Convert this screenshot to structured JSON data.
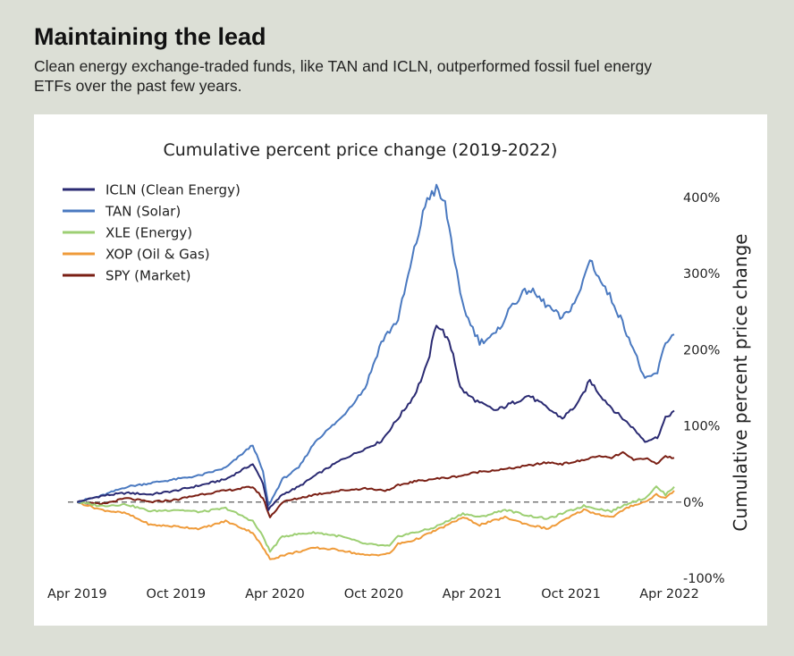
{
  "header": {
    "title": "Maintaining the lead",
    "subtitle": "Clean energy exchange-traded funds, like TAN and ICLN, outperformed fossil fuel energy ETFs over the past few years."
  },
  "chart_data": {
    "type": "line",
    "title": "Cumulative percent price change (2019-2022)",
    "ylabel": "Cumulative percent price change",
    "xlabel": "",
    "x_ticks": [
      "Apr 2019",
      "Oct 2019",
      "Apr 2020",
      "Oct 2020",
      "Apr 2021",
      "Oct 2021",
      "Apr 2022"
    ],
    "y_ticks": [
      "-100%",
      "0%",
      "100%",
      "200%",
      "300%",
      "400%"
    ],
    "y_tick_values": [
      -100,
      0,
      100,
      200,
      300,
      400
    ],
    "ylim": [
      -100,
      415
    ],
    "xlim": [
      "2019-03-15",
      "2022-04-20"
    ],
    "y_axis_side": "right",
    "grid": false,
    "legend_position": "top-left",
    "baseline": {
      "y": 0,
      "style": "dashed",
      "color": "#777777"
    },
    "series": [
      {
        "name": "ICLN (Clean Energy)",
        "color": "#2a2a72",
        "points": [
          [
            "2019-04-01",
            0
          ],
          [
            "2019-05-15",
            8
          ],
          [
            "2019-07-01",
            12
          ],
          [
            "2019-08-15",
            10
          ],
          [
            "2019-10-01",
            15
          ],
          [
            "2019-11-15",
            22
          ],
          [
            "2020-01-01",
            30
          ],
          [
            "2020-02-20",
            50
          ],
          [
            "2020-03-10",
            25
          ],
          [
            "2020-03-20",
            -10
          ],
          [
            "2020-04-15",
            10
          ],
          [
            "2020-05-15",
            20
          ],
          [
            "2020-06-15",
            35
          ],
          [
            "2020-08-01",
            55
          ],
          [
            "2020-09-15",
            70
          ],
          [
            "2020-10-15",
            80
          ],
          [
            "2020-11-15",
            110
          ],
          [
            "2020-12-15",
            140
          ],
          [
            "2021-01-08",
            180
          ],
          [
            "2021-01-25",
            235
          ],
          [
            "2021-02-10",
            220
          ],
          [
            "2021-02-25",
            195
          ],
          [
            "2021-03-10",
            150
          ],
          [
            "2021-03-25",
            140
          ],
          [
            "2021-04-15",
            130
          ],
          [
            "2021-05-15",
            120
          ],
          [
            "2021-06-15",
            130
          ],
          [
            "2021-07-15",
            140
          ],
          [
            "2021-08-15",
            125
          ],
          [
            "2021-09-15",
            110
          ],
          [
            "2021-10-15",
            130
          ],
          [
            "2021-11-05",
            160
          ],
          [
            "2021-11-25",
            140
          ],
          [
            "2021-12-20",
            120
          ],
          [
            "2022-01-20",
            100
          ],
          [
            "2022-02-15",
            80
          ],
          [
            "2022-03-10",
            85
          ],
          [
            "2022-03-25",
            110
          ],
          [
            "2022-04-10",
            120
          ]
        ]
      },
      {
        "name": "TAN (Solar)",
        "color": "#4a79c0",
        "points": [
          [
            "2019-04-01",
            0
          ],
          [
            "2019-05-15",
            8
          ],
          [
            "2019-07-01",
            20
          ],
          [
            "2019-08-15",
            25
          ],
          [
            "2019-10-01",
            30
          ],
          [
            "2019-11-15",
            35
          ],
          [
            "2020-01-01",
            45
          ],
          [
            "2020-02-20",
            75
          ],
          [
            "2020-03-10",
            40
          ],
          [
            "2020-03-20",
            -5
          ],
          [
            "2020-04-15",
            30
          ],
          [
            "2020-05-15",
            45
          ],
          [
            "2020-06-15",
            80
          ],
          [
            "2020-08-01",
            110
          ],
          [
            "2020-09-15",
            150
          ],
          [
            "2020-10-15",
            210
          ],
          [
            "2020-11-15",
            240
          ],
          [
            "2020-12-15",
            330
          ],
          [
            "2021-01-08",
            400
          ],
          [
            "2021-01-25",
            410
          ],
          [
            "2021-02-10",
            390
          ],
          [
            "2021-02-25",
            330
          ],
          [
            "2021-03-10",
            270
          ],
          [
            "2021-03-25",
            240
          ],
          [
            "2021-04-15",
            210
          ],
          [
            "2021-05-15",
            220
          ],
          [
            "2021-06-15",
            260
          ],
          [
            "2021-07-15",
            280
          ],
          [
            "2021-08-15",
            260
          ],
          [
            "2021-09-15",
            240
          ],
          [
            "2021-10-15",
            270
          ],
          [
            "2021-11-05",
            320
          ],
          [
            "2021-11-25",
            290
          ],
          [
            "2021-12-20",
            260
          ],
          [
            "2022-01-20",
            210
          ],
          [
            "2022-02-15",
            160
          ],
          [
            "2022-03-10",
            170
          ],
          [
            "2022-03-25",
            210
          ],
          [
            "2022-04-10",
            220
          ]
        ]
      },
      {
        "name": "XLE (Energy)",
        "color": "#9dcf73",
        "points": [
          [
            "2019-04-01",
            0
          ],
          [
            "2019-05-15",
            -5
          ],
          [
            "2019-07-01",
            -3
          ],
          [
            "2019-08-15",
            -12
          ],
          [
            "2019-10-01",
            -10
          ],
          [
            "2019-11-15",
            -13
          ],
          [
            "2020-01-01",
            -8
          ],
          [
            "2020-02-20",
            -25
          ],
          [
            "2020-03-10",
            -45
          ],
          [
            "2020-03-23",
            -65
          ],
          [
            "2020-04-15",
            -45
          ],
          [
            "2020-05-15",
            -42
          ],
          [
            "2020-06-15",
            -40
          ],
          [
            "2020-08-01",
            -45
          ],
          [
            "2020-09-15",
            -55
          ],
          [
            "2020-10-30",
            -58
          ],
          [
            "2020-11-15",
            -45
          ],
          [
            "2020-12-15",
            -40
          ],
          [
            "2021-01-15",
            -35
          ],
          [
            "2021-02-15",
            -25
          ],
          [
            "2021-03-15",
            -15
          ],
          [
            "2021-04-15",
            -20
          ],
          [
            "2021-06-01",
            -10
          ],
          [
            "2021-07-15",
            -18
          ],
          [
            "2021-08-20",
            -22
          ],
          [
            "2021-09-15",
            -15
          ],
          [
            "2021-10-25",
            -5
          ],
          [
            "2021-11-15",
            -8
          ],
          [
            "2021-12-15",
            -12
          ],
          [
            "2022-01-20",
            0
          ],
          [
            "2022-02-15",
            5
          ],
          [
            "2022-03-08",
            20
          ],
          [
            "2022-03-25",
            10
          ],
          [
            "2022-04-10",
            20
          ]
        ]
      },
      {
        "name": "XOP (Oil & Gas)",
        "color": "#ef9b3a",
        "points": [
          [
            "2019-04-01",
            0
          ],
          [
            "2019-05-15",
            -10
          ],
          [
            "2019-07-01",
            -15
          ],
          [
            "2019-08-15",
            -30
          ],
          [
            "2019-10-01",
            -32
          ],
          [
            "2019-11-15",
            -35
          ],
          [
            "2020-01-01",
            -25
          ],
          [
            "2020-02-20",
            -40
          ],
          [
            "2020-03-10",
            -60
          ],
          [
            "2020-03-23",
            -75
          ],
          [
            "2020-04-15",
            -70
          ],
          [
            "2020-05-15",
            -65
          ],
          [
            "2020-06-15",
            -60
          ],
          [
            "2020-08-01",
            -63
          ],
          [
            "2020-09-15",
            -70
          ],
          [
            "2020-10-30",
            -68
          ],
          [
            "2020-11-15",
            -55
          ],
          [
            "2020-12-15",
            -50
          ],
          [
            "2021-01-15",
            -40
          ],
          [
            "2021-02-15",
            -30
          ],
          [
            "2021-03-15",
            -20
          ],
          [
            "2021-04-15",
            -30
          ],
          [
            "2021-06-01",
            -20
          ],
          [
            "2021-07-15",
            -30
          ],
          [
            "2021-08-20",
            -35
          ],
          [
            "2021-09-15",
            -25
          ],
          [
            "2021-10-25",
            -10
          ],
          [
            "2021-11-15",
            -15
          ],
          [
            "2021-12-15",
            -20
          ],
          [
            "2022-01-20",
            -5
          ],
          [
            "2022-02-15",
            0
          ],
          [
            "2022-03-08",
            10
          ],
          [
            "2022-03-25",
            5
          ],
          [
            "2022-04-10",
            15
          ]
        ]
      },
      {
        "name": "SPY (Market)",
        "color": "#7a1f14",
        "points": [
          [
            "2019-04-01",
            0
          ],
          [
            "2019-05-15",
            -3
          ],
          [
            "2019-07-01",
            5
          ],
          [
            "2019-08-15",
            0
          ],
          [
            "2019-10-01",
            3
          ],
          [
            "2019-11-15",
            10
          ],
          [
            "2020-01-01",
            15
          ],
          [
            "2020-02-20",
            20
          ],
          [
            "2020-03-10",
            5
          ],
          [
            "2020-03-23",
            -20
          ],
          [
            "2020-04-15",
            0
          ],
          [
            "2020-05-15",
            5
          ],
          [
            "2020-06-15",
            10
          ],
          [
            "2020-08-01",
            15
          ],
          [
            "2020-09-15",
            18
          ],
          [
            "2020-10-30",
            15
          ],
          [
            "2020-11-15",
            22
          ],
          [
            "2020-12-15",
            27
          ],
          [
            "2021-01-15",
            30
          ],
          [
            "2021-02-15",
            32
          ],
          [
            "2021-03-15",
            35
          ],
          [
            "2021-04-15",
            40
          ],
          [
            "2021-06-01",
            43
          ],
          [
            "2021-07-15",
            48
          ],
          [
            "2021-08-20",
            52
          ],
          [
            "2021-09-15",
            50
          ],
          [
            "2021-10-25",
            55
          ],
          [
            "2021-11-15",
            60
          ],
          [
            "2021-12-15",
            58
          ],
          [
            "2022-01-05",
            65
          ],
          [
            "2022-01-25",
            55
          ],
          [
            "2022-02-15",
            58
          ],
          [
            "2022-03-08",
            50
          ],
          [
            "2022-03-25",
            60
          ],
          [
            "2022-04-10",
            58
          ]
        ]
      }
    ]
  }
}
